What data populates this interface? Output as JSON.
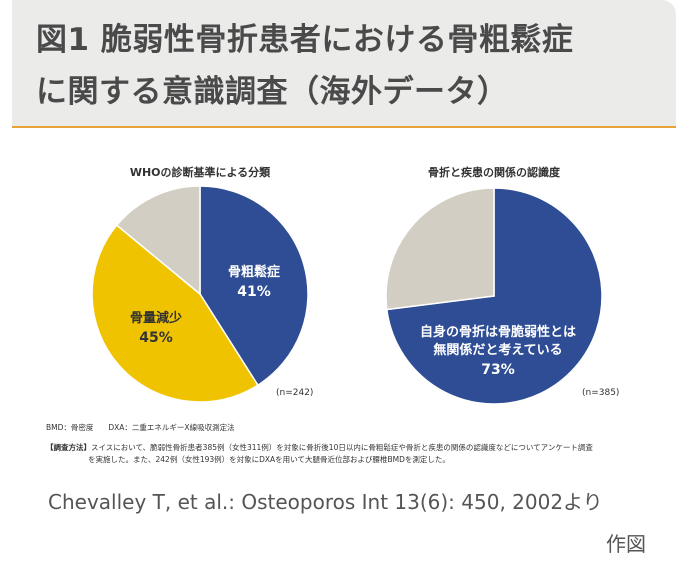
{
  "header": {
    "title_line1": "図1 脆弱性骨折患者における骨粗鬆症",
    "title_line2": "に関する意識調査（海外データ）"
  },
  "chart_data": [
    {
      "type": "pie",
      "title": "WHOの診断基準による分類",
      "n_label": "(n=242)",
      "slices": [
        {
          "label": "骨粗鬆症",
          "value": 41,
          "display": "41%",
          "color": "#2e4d94"
        },
        {
          "label": "骨量減少",
          "value": 45,
          "display": "45%",
          "color": "#efc300"
        },
        {
          "label": "",
          "value": 14,
          "display": "",
          "color": "#d3cec4"
        }
      ]
    },
    {
      "type": "pie",
      "title": "骨折と疾患の関係の認識度",
      "n_label": "(n=385)",
      "slices": [
        {
          "label": "自身の骨折は骨脆弱性とは 無関係だと考えている",
          "value": 73,
          "display": "73%",
          "color": "#2e4d94"
        },
        {
          "label": "",
          "value": 27,
          "display": "",
          "color": "#d3cec4"
        }
      ]
    }
  ],
  "notes": {
    "abbrev": "BMD：骨密度　　DXA：二重エネルギーX線吸収測定法",
    "method_tag": "【調査方法】",
    "method_line1": "スイスにおいて、脆弱性骨折患者385例（女性311例）を対象に骨折後10日以内に骨粗鬆症や骨折と疾患の関係の認識度などについてアンケート調査",
    "method_line2": "を実施した。また、242例（女性193例）を対象にDXAを用いて大腿骨近位部および腰椎BMDを測定した。"
  },
  "citation": {
    "line1": "Chevalley T, et al.: Osteoporos Int 13(6): 450, 2002より",
    "line2": "作図"
  }
}
